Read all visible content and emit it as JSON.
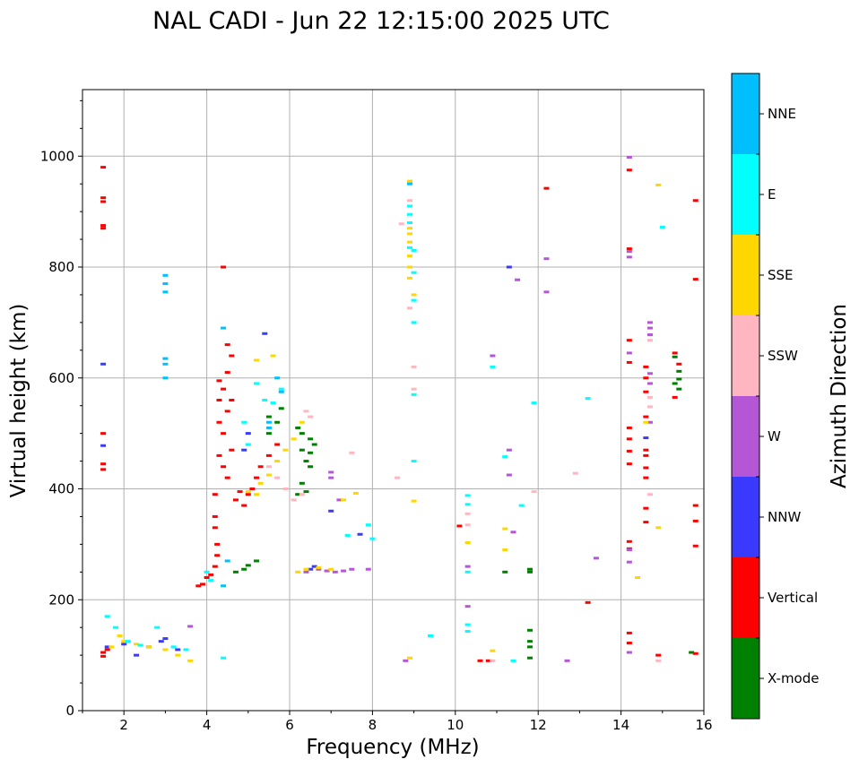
{
  "chart_data": {
    "type": "scatter",
    "title": "NAL CADI - Jun 22 12:15:00 2025 UTC",
    "xlabel": "Frequency (MHz)",
    "ylabel": "Virtual height (km)",
    "xlim": [
      1,
      16
    ],
    "ylim": [
      0,
      1120
    ],
    "xticks": [
      2,
      4,
      6,
      8,
      10,
      12,
      14,
      16
    ],
    "yticks": [
      0,
      200,
      400,
      600,
      800,
      1000
    ],
    "grid": true,
    "colorbar": {
      "label": "Azimuth Direction",
      "placement": "right",
      "categories": [
        {
          "name": "X-mode",
          "color": "#008000"
        },
        {
          "name": "Vertical",
          "color": "#ff0000"
        },
        {
          "name": "NNW",
          "color": "#3a3aff"
        },
        {
          "name": "W",
          "color": "#b456d6"
        },
        {
          "name": "SSW",
          "color": "#ffb6c1"
        },
        {
          "name": "SSE",
          "color": "#ffd700"
        },
        {
          "name": "E",
          "color": "#00ffff"
        },
        {
          "name": "NNE",
          "color": "#00bfff"
        }
      ]
    },
    "series": [
      {
        "name": "X-mode",
        "points": [
          [
            4.7,
            250
          ],
          [
            4.9,
            255
          ],
          [
            5.0,
            262
          ],
          [
            5.2,
            270
          ],
          [
            5.5,
            530
          ],
          [
            5.5,
            500
          ],
          [
            5.7,
            520
          ],
          [
            5.8,
            545
          ],
          [
            6.2,
            510
          ],
          [
            6.3,
            500
          ],
          [
            6.3,
            470
          ],
          [
            6.4,
            450
          ],
          [
            6.5,
            465
          ],
          [
            6.5,
            490
          ],
          [
            6.5,
            440
          ],
          [
            6.6,
            480
          ],
          [
            6.2,
            390
          ],
          [
            6.4,
            395
          ],
          [
            6.3,
            410
          ],
          [
            11.2,
            250
          ],
          [
            11.8,
            255
          ],
          [
            11.8,
            250
          ],
          [
            11.8,
            145
          ],
          [
            11.8,
            125
          ],
          [
            11.8,
            115
          ],
          [
            11.8,
            95
          ],
          [
            15.3,
            638
          ],
          [
            15.4,
            612
          ],
          [
            15.4,
            598
          ],
          [
            15.3,
            590
          ],
          [
            15.4,
            580
          ],
          [
            15.7,
            105
          ]
        ]
      },
      {
        "name": "Vertical",
        "points": [
          [
            1.5,
            980
          ],
          [
            1.5,
            925
          ],
          [
            1.5,
            918
          ],
          [
            1.5,
            875
          ],
          [
            1.5,
            870
          ],
          [
            1.5,
            500
          ],
          [
            1.5,
            445
          ],
          [
            1.5,
            435
          ],
          [
            1.5,
            105
          ],
          [
            1.5,
            98
          ],
          [
            1.6,
            110
          ],
          [
            4.2,
            390
          ],
          [
            4.2,
            350
          ],
          [
            4.2,
            330
          ],
          [
            4.25,
            300
          ],
          [
            4.25,
            280
          ],
          [
            4.2,
            260
          ],
          [
            4.1,
            245
          ],
          [
            4.0,
            240
          ],
          [
            3.9,
            228
          ],
          [
            3.8,
            225
          ],
          [
            4.4,
            800
          ],
          [
            4.3,
            595
          ],
          [
            4.4,
            580
          ],
          [
            4.3,
            560
          ],
          [
            4.3,
            520
          ],
          [
            4.4,
            500
          ],
          [
            4.3,
            460
          ],
          [
            4.4,
            440
          ],
          [
            4.5,
            420
          ],
          [
            4.6,
            470
          ],
          [
            4.5,
            540
          ],
          [
            4.5,
            610
          ],
          [
            4.6,
            560
          ],
          [
            4.7,
            380
          ],
          [
            4.8,
            395
          ],
          [
            4.9,
            370
          ],
          [
            5.0,
            390
          ],
          [
            5.1,
            400
          ],
          [
            5.2,
            420
          ],
          [
            5.3,
            440
          ],
          [
            5.5,
            460
          ],
          [
            5.7,
            480
          ],
          [
            4.5,
            660
          ],
          [
            4.6,
            640
          ],
          [
            10.1,
            333
          ],
          [
            10.6,
            90
          ],
          [
            10.8,
            90
          ],
          [
            12.2,
            942
          ],
          [
            13.2,
            195
          ],
          [
            14.2,
            975
          ],
          [
            14.2,
            833
          ],
          [
            14.2,
            668
          ],
          [
            14.2,
            628
          ],
          [
            14.2,
            510
          ],
          [
            14.2,
            490
          ],
          [
            14.2,
            468
          ],
          [
            14.2,
            445
          ],
          [
            14.2,
            305
          ],
          [
            14.2,
            292
          ],
          [
            14.2,
            140
          ],
          [
            14.2,
            122
          ],
          [
            14.6,
            470
          ],
          [
            14.6,
            460
          ],
          [
            14.6,
            438
          ],
          [
            14.6,
            420
          ],
          [
            14.6,
            365
          ],
          [
            14.6,
            340
          ],
          [
            14.6,
            620
          ],
          [
            14.6,
            600
          ],
          [
            14.6,
            575
          ],
          [
            14.6,
            530
          ],
          [
            14.9,
            100
          ],
          [
            15.3,
            645
          ],
          [
            15.4,
            625
          ],
          [
            15.3,
            565
          ],
          [
            15.8,
            920
          ],
          [
            15.8,
            778
          ],
          [
            15.8,
            370
          ],
          [
            15.8,
            342
          ],
          [
            15.8,
            297
          ],
          [
            15.8,
            103
          ]
        ]
      },
      {
        "name": "NNW",
        "points": [
          [
            1.5,
            625
          ],
          [
            1.5,
            478
          ],
          [
            1.6,
            115
          ],
          [
            2.0,
            120
          ],
          [
            2.3,
            100
          ],
          [
            2.6,
            115
          ],
          [
            2.9,
            125
          ],
          [
            3.0,
            130
          ],
          [
            3.3,
            110
          ],
          [
            4.9,
            470
          ],
          [
            5.0,
            500
          ],
          [
            5.4,
            680
          ],
          [
            6.5,
            255
          ],
          [
            6.6,
            260
          ],
          [
            7.0,
            360
          ],
          [
            7.7,
            318
          ],
          [
            11.3,
            800
          ],
          [
            14.6,
            492
          ]
        ]
      },
      {
        "name": "W",
        "points": [
          [
            3.6,
            152
          ],
          [
            6.4,
            250
          ],
          [
            6.7,
            255
          ],
          [
            6.9,
            252
          ],
          [
            7.1,
            250
          ],
          [
            7.3,
            252
          ],
          [
            7.5,
            255
          ],
          [
            7.9,
            255
          ],
          [
            7.0,
            430
          ],
          [
            7.0,
            420
          ],
          [
            7.2,
            380
          ],
          [
            8.8,
            90
          ],
          [
            10.3,
            188
          ],
          [
            10.3,
            260
          ],
          [
            10.9,
            640
          ],
          [
            11.3,
            470
          ],
          [
            11.3,
            425
          ],
          [
            11.4,
            322
          ],
          [
            11.5,
            777
          ],
          [
            12.2,
            815
          ],
          [
            12.2,
            755
          ],
          [
            12.7,
            90
          ],
          [
            13.4,
            275
          ],
          [
            14.2,
            998
          ],
          [
            14.2,
            828
          ],
          [
            14.2,
            818
          ],
          [
            14.2,
            645
          ],
          [
            14.2,
            290
          ],
          [
            14.2,
            268
          ],
          [
            14.2,
            105
          ],
          [
            14.7,
            700
          ],
          [
            14.7,
            690
          ],
          [
            14.7,
            678
          ],
          [
            14.7,
            608
          ],
          [
            14.7,
            590
          ],
          [
            14.7,
            520
          ]
        ]
      },
      {
        "name": "SSW",
        "points": [
          [
            5.5,
            440
          ],
          [
            5.7,
            420
          ],
          [
            5.9,
            400
          ],
          [
            6.1,
            380
          ],
          [
            6.3,
            390
          ],
          [
            6.4,
            540
          ],
          [
            6.5,
            530
          ],
          [
            7.5,
            465
          ],
          [
            8.6,
            420
          ],
          [
            8.7,
            878
          ],
          [
            8.9,
            920
          ],
          [
            8.9,
            726
          ],
          [
            9.0,
            620
          ],
          [
            9.0,
            580
          ],
          [
            10.3,
            355
          ],
          [
            10.3,
            335
          ],
          [
            10.9,
            90
          ],
          [
            11.9,
            395
          ],
          [
            12.9,
            428
          ],
          [
            14.7,
            668
          ],
          [
            14.7,
            565
          ],
          [
            14.7,
            548
          ],
          [
            14.7,
            390
          ],
          [
            14.9,
            90
          ]
        ]
      },
      {
        "name": "SSE",
        "points": [
          [
            1.7,
            115
          ],
          [
            1.9,
            135
          ],
          [
            2.0,
            125
          ],
          [
            2.3,
            120
          ],
          [
            2.6,
            115
          ],
          [
            3.0,
            110
          ],
          [
            3.3,
            100
          ],
          [
            3.6,
            90
          ],
          [
            5.0,
            395
          ],
          [
            5.2,
            390
          ],
          [
            5.3,
            410
          ],
          [
            5.5,
            425
          ],
          [
            5.7,
            450
          ],
          [
            5.9,
            470
          ],
          [
            6.1,
            490
          ],
          [
            6.3,
            520
          ],
          [
            7.3,
            380
          ],
          [
            7.6,
            392
          ],
          [
            6.2,
            250
          ],
          [
            6.4,
            255
          ],
          [
            6.7,
            258
          ],
          [
            7.0,
            255
          ],
          [
            5.2,
            632
          ],
          [
            5.6,
            640
          ],
          [
            8.9,
            860
          ],
          [
            8.9,
            845
          ],
          [
            8.9,
            820
          ],
          [
            8.9,
            800
          ],
          [
            8.9,
            780
          ],
          [
            8.9,
            870
          ],
          [
            8.9,
            955
          ],
          [
            9.0,
            750
          ],
          [
            9.0,
            378
          ],
          [
            8.9,
            95
          ],
          [
            10.3,
            303
          ],
          [
            10.9,
            108
          ],
          [
            11.2,
            328
          ],
          [
            11.2,
            290
          ],
          [
            14.4,
            240
          ],
          [
            14.6,
            520
          ],
          [
            14.9,
            948
          ],
          [
            14.9,
            330
          ]
        ]
      },
      {
        "name": "E",
        "points": [
          [
            1.6,
            170
          ],
          [
            1.8,
            150
          ],
          [
            2.1,
            125
          ],
          [
            2.4,
            118
          ],
          [
            2.8,
            150
          ],
          [
            3.2,
            115
          ],
          [
            3.5,
            110
          ],
          [
            4.4,
            95
          ],
          [
            4.0,
            250
          ],
          [
            4.1,
            235
          ],
          [
            4.9,
            520
          ],
          [
            5.0,
            480
          ],
          [
            5.2,
            590
          ],
          [
            5.4,
            560
          ],
          [
            5.6,
            555
          ],
          [
            5.8,
            580
          ],
          [
            7.4,
            316
          ],
          [
            7.9,
            335
          ],
          [
            8.0,
            310
          ],
          [
            8.9,
            910
          ],
          [
            8.9,
            895
          ],
          [
            8.9,
            880
          ],
          [
            8.9,
            835
          ],
          [
            9.0,
            830
          ],
          [
            9.0,
            790
          ],
          [
            9.0,
            740
          ],
          [
            9.0,
            700
          ],
          [
            9.0,
            570
          ],
          [
            9.0,
            450
          ],
          [
            9.4,
            135
          ],
          [
            10.3,
            388
          ],
          [
            10.3,
            372
          ],
          [
            10.3,
            250
          ],
          [
            10.3,
            155
          ],
          [
            10.3,
            143
          ],
          [
            10.9,
            620
          ],
          [
            11.2,
            458
          ],
          [
            11.4,
            90
          ],
          [
            11.6,
            370
          ],
          [
            11.9,
            555
          ],
          [
            13.2,
            563
          ],
          [
            15.0,
            872
          ]
        ]
      },
      {
        "name": "NNE",
        "points": [
          [
            3.0,
            785
          ],
          [
            3.0,
            770
          ],
          [
            3.0,
            755
          ],
          [
            3.0,
            635
          ],
          [
            3.0,
            625
          ],
          [
            3.0,
            600
          ],
          [
            4.4,
            225
          ],
          [
            4.5,
            270
          ],
          [
            4.4,
            690
          ],
          [
            5.5,
            510
          ],
          [
            5.5,
            520
          ],
          [
            5.7,
            600
          ],
          [
            5.8,
            575
          ],
          [
            8.9,
            950
          ]
        ]
      }
    ]
  }
}
